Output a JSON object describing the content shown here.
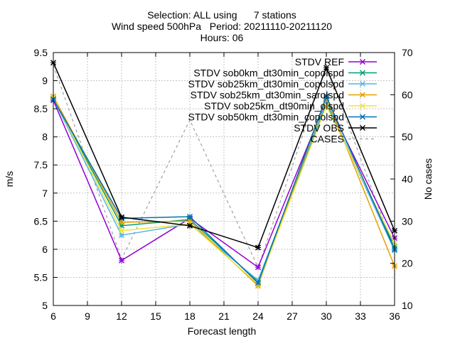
{
  "title_lines": [
    "Selection: ALL using      7 stations",
    "Wind speed 500hPa   Period: 20211110-20211120",
    "Hours: 06"
  ],
  "chart_data": {
    "type": "line",
    "xlabel": "Forecast length",
    "ylabel": "m/s",
    "y2label": "No cases",
    "xlim": [
      6,
      36
    ],
    "ylim": [
      5,
      9.5
    ],
    "y2lim": [
      10,
      70
    ],
    "x_ticks": [
      6,
      9,
      12,
      15,
      18,
      21,
      24,
      27,
      30,
      33,
      36
    ],
    "y_ticks": [
      5,
      5.5,
      6,
      6.5,
      7,
      7.5,
      8,
      8.5,
      9,
      9.5
    ],
    "y_tick_labels": [
      "5",
      "5.5",
      "6",
      "6.5",
      "7",
      "7.5",
      "8",
      "8.5",
      "9",
      "9.5"
    ],
    "y2_ticks": [
      10,
      20,
      30,
      40,
      50,
      60,
      70
    ],
    "grid": true,
    "legend_position": "top-right",
    "x": [
      6,
      12,
      18,
      24,
      30,
      36
    ],
    "series": [
      {
        "name": "STDV REF",
        "color": "#9400d3",
        "marker": "x",
        "dash": "solid",
        "axis": "y",
        "values": [
          8.65,
          5.8,
          6.55,
          5.68,
          8.65,
          6.2
        ]
      },
      {
        "name": "STDV sob0km_dt30min_copolspd",
        "color": "#009e73",
        "marker": "x",
        "dash": "solid",
        "axis": "y",
        "values": [
          8.7,
          6.42,
          6.53,
          5.42,
          8.6,
          6.05
        ]
      },
      {
        "name": "STDV sob25km_dt30min_copolspd",
        "color": "#56b4e9",
        "marker": "x",
        "dash": "solid",
        "axis": "y",
        "values": [
          8.68,
          6.25,
          6.45,
          5.45,
          8.62,
          5.98
        ]
      },
      {
        "name": "STDV sob25km_dt30min_sarolspd",
        "color": "#e69f00",
        "marker": "x",
        "dash": "solid",
        "axis": "y",
        "values": [
          8.72,
          6.48,
          6.5,
          5.35,
          8.7,
          5.7
        ]
      },
      {
        "name": "STDV sob25km_dt90min_olspd",
        "color": "#f0e442",
        "marker": "x",
        "dash": "solid",
        "axis": "y",
        "values": [
          8.7,
          6.33,
          6.45,
          5.38,
          8.55,
          6.1
        ]
      },
      {
        "name": "STDV sob50km_dt30min_copolspd",
        "color": "#0072b2",
        "marker": "x",
        "dash": "solid",
        "axis": "y",
        "values": [
          8.67,
          6.55,
          6.58,
          5.4,
          8.72,
          6.0
        ]
      },
      {
        "name": "STDV OBS",
        "color": "#000000",
        "marker": "x",
        "dash": "solid",
        "axis": "y",
        "values": [
          9.32,
          6.57,
          6.42,
          6.03,
          9.23,
          6.33
        ]
      },
      {
        "name": "CASES",
        "color": "#a0a0a0",
        "marker": "none",
        "dash": "dashed",
        "axis": "y2",
        "values": [
          67,
          21,
          54,
          19,
          67,
          23
        ]
      }
    ]
  }
}
